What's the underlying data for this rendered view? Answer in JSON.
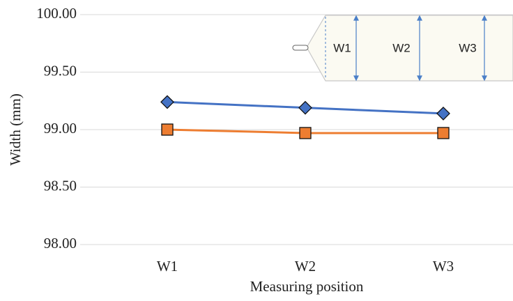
{
  "chart_data": {
    "type": "line",
    "x_label": "Measuring position",
    "y_label": "Width (mm)",
    "categories": [
      "W1",
      "W2",
      "W3"
    ],
    "series": [
      {
        "color": "#4472c4",
        "marker": "diamond",
        "values": [
          99.24,
          99.19,
          99.14
        ]
      },
      {
        "color": "#ed7d31",
        "marker": "square",
        "values": [
          99.0,
          98.97,
          98.97
        ]
      }
    ],
    "ylim": [
      98,
      100
    ],
    "yticks": [
      {
        "value": 98,
        "label": "98.00"
      },
      {
        "value": 98.5,
        "label": "98.50"
      },
      {
        "value": 99,
        "label": "99.00"
      },
      {
        "value": 99.5,
        "label": "99.50"
      },
      {
        "value": 100,
        "label": "100.00"
      }
    ],
    "grid": true,
    "inset_labels": [
      "W1",
      "W2",
      "W3"
    ]
  }
}
